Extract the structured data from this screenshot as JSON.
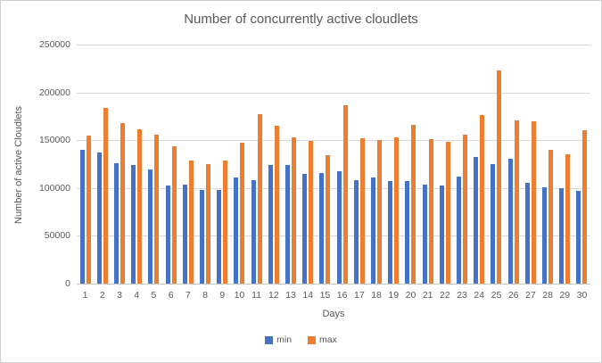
{
  "chart_data": {
    "type": "bar",
    "title": "Number of concurrently active cloudlets",
    "xlabel": "Days",
    "ylabel": "Number of active Cloudlets",
    "ylim": [
      0,
      250000
    ],
    "yticks": [
      0,
      50000,
      100000,
      150000,
      200000,
      250000
    ],
    "grid": true,
    "legend_position": "bottom",
    "categories": [
      "1",
      "2",
      "3",
      "4",
      "5",
      "6",
      "7",
      "8",
      "9",
      "10",
      "11",
      "12",
      "13",
      "14",
      "15",
      "16",
      "17",
      "18",
      "19",
      "20",
      "21",
      "22",
      "23",
      "24",
      "25",
      "26",
      "27",
      "28",
      "29",
      "30"
    ],
    "series": [
      {
        "name": "min",
        "color": "#4472C4",
        "values": [
          140000,
          137000,
          126000,
          124000,
          119000,
          103000,
          104000,
          98000,
          98000,
          111000,
          108000,
          124000,
          124000,
          115000,
          116000,
          118000,
          108000,
          111000,
          107000,
          107000,
          104000,
          103000,
          112000,
          132000,
          125000,
          131000,
          105000,
          101000,
          100000,
          97000
        ]
      },
      {
        "name": "max",
        "color": "#ED7D31",
        "values": [
          155000,
          184000,
          168000,
          161000,
          156000,
          144000,
          129000,
          125000,
          129000,
          147000,
          177000,
          165000,
          153000,
          149000,
          134000,
          187000,
          152000,
          150000,
          153000,
          166000,
          151000,
          148000,
          156000,
          176000,
          223000,
          171000,
          170000,
          140000,
          135000,
          160000
        ]
      }
    ]
  },
  "colors": {
    "grid": "#d9d9d9",
    "axis": "#c6c6c6",
    "text": "#595959"
  }
}
